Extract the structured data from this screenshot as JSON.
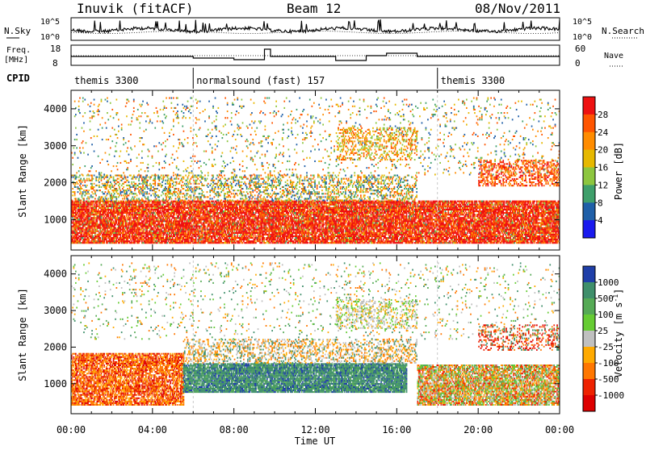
{
  "header": {
    "station": "Inuvik (fitACF)",
    "beam": "Beam 12",
    "date": "08/Nov/2011"
  },
  "panels": {
    "nsky_label": "N.Sky",
    "nsky_ticks": [
      "10^5",
      "10^0"
    ],
    "nsearch_label": "N.Search",
    "nsearch_ticks": [
      "10^5",
      "10^0"
    ],
    "freq_label": "Freq.",
    "freq_unit": "[MHz]",
    "freq_ticks": [
      "18",
      "8"
    ],
    "nave_label": "Nave",
    "nave_ticks": [
      "60",
      "0"
    ],
    "cpid_label": "CPID",
    "cpid_segments": [
      {
        "label": "themis 3300",
        "start_h": 0,
        "end_h": 6
      },
      {
        "label": "normalsound (fast) 157",
        "start_h": 6,
        "end_h": 18
      },
      {
        "label": "themis 3300",
        "start_h": 18,
        "end_h": 24
      }
    ]
  },
  "axes": {
    "ylabel": "Slant Range [km]",
    "y_ticks": [
      "4000",
      "3000",
      "2000",
      "1000"
    ],
    "xlabel": "Time UT",
    "x_ticks": [
      "00:00",
      "04:00",
      "08:00",
      "12:00",
      "16:00",
      "20:00",
      "00:00"
    ]
  },
  "power_scale": {
    "label": "Power [dB]",
    "ticks": [
      "28",
      "24",
      "20",
      "16",
      "12",
      "8",
      "4"
    ],
    "colors": [
      "#ee1111",
      "#ff5500",
      "#ff8c00",
      "#e6b800",
      "#8dc63f",
      "#3f9f6b",
      "#1f5fa8",
      "#1a1aee"
    ]
  },
  "velocity_scale": {
    "label": "Velocity [m s",
    "unit_sup": "-1",
    "unit_close": "]",
    "ticks": [
      "1000",
      "500",
      "100",
      "25",
      "-25",
      "-100",
      "-500",
      "-1000"
    ],
    "colors": [
      "#1f3fa8",
      "#3f8f6b",
      "#55aa55",
      "#66cc33",
      "#c0c0c0",
      "#ffaa00",
      "#ff7700",
      "#ee2200",
      "#dd0000"
    ]
  },
  "chart_data": [
    {
      "type": "heatmap",
      "title": "",
      "xlabel": "Time UT",
      "ylabel": "Slant Range [km]",
      "xlim": [
        0,
        24
      ],
      "ylim": [
        180,
        4500
      ],
      "colorbar": "Power [dB]",
      "bands": [
        {
          "t_start": 0,
          "t_end": 6,
          "range_low": 400,
          "range_high": 1500,
          "level": "20-28 dB"
        },
        {
          "t_start": 6,
          "t_end": 17,
          "range_low": 500,
          "range_high": 1600,
          "level": "20-28 dB"
        },
        {
          "t_start": 18,
          "t_end": 24,
          "range_low": 400,
          "range_high": 1400,
          "level": "24-28 dB"
        },
        {
          "t_start": 20,
          "t_end": 24,
          "range_low": 1900,
          "range_high": 2600,
          "level": "20-28 dB"
        }
      ]
    },
    {
      "type": "heatmap",
      "title": "",
      "xlabel": "Time UT",
      "ylabel": "Slant Range [km]",
      "xlim": [
        0,
        24
      ],
      "ylim": [
        180,
        4500
      ],
      "colorbar": "Velocity [m s-1]",
      "bands": [
        {
          "t_start": 0,
          "t_end": 5,
          "range_low": 500,
          "range_high": 1800,
          "level": "-100 to -500 m/s"
        },
        {
          "t_start": 5,
          "t_end": 16,
          "range_low": 800,
          "range_high": 1500,
          "level": "100 to 500 m/s"
        },
        {
          "t_start": 13,
          "t_end": 17,
          "range_low": 2500,
          "range_high": 3200,
          "level": "-25 to 25 m/s"
        },
        {
          "t_start": 18,
          "t_end": 24,
          "range_low": 500,
          "range_high": 1400,
          "level": "-25 to -500 m/s"
        }
      ]
    }
  ]
}
